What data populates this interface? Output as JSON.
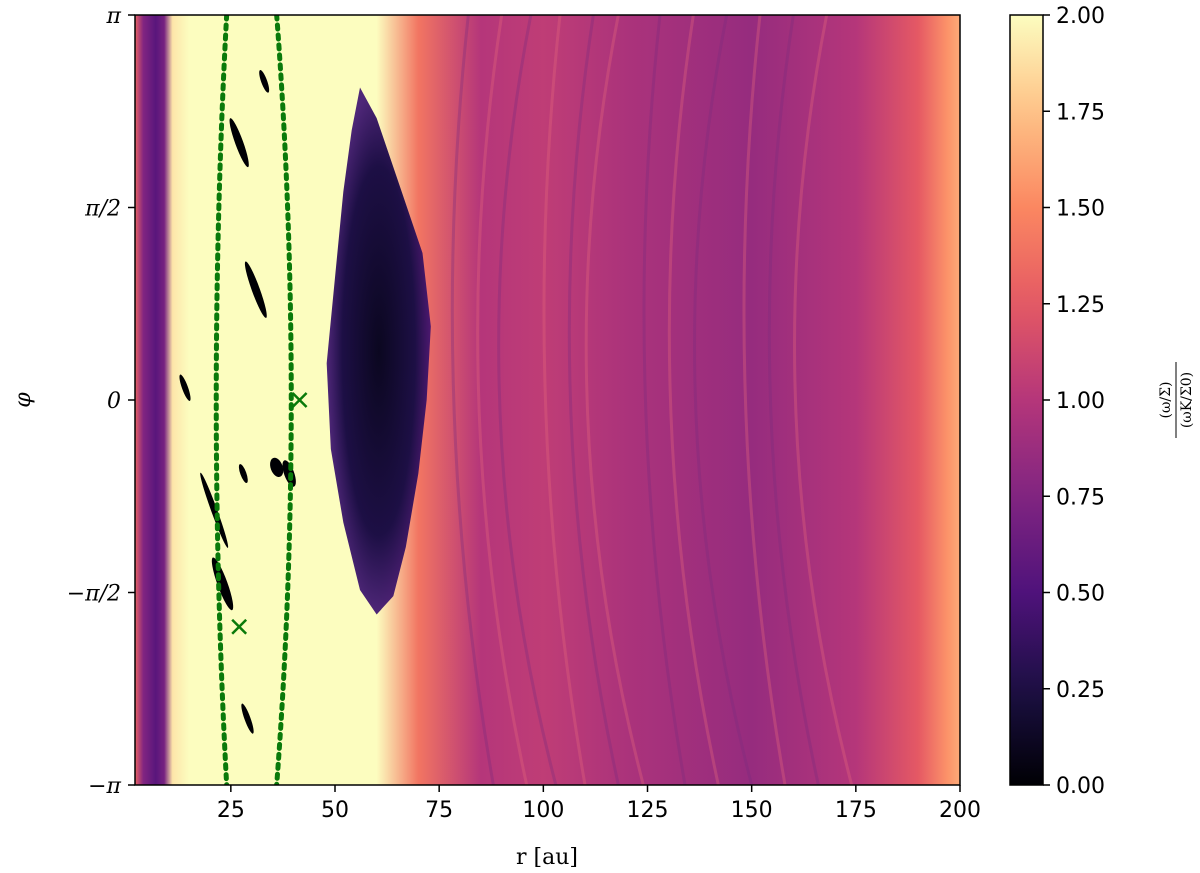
{
  "chart_data": {
    "type": "heatmap",
    "colormap": "magma",
    "xlabel": "r [au]",
    "ylabel": "φ",
    "xlim": [
      2,
      200
    ],
    "ylim": [
      -3.14159,
      3.14159
    ],
    "x_ticks": [
      {
        "value": 25,
        "label": "25"
      },
      {
        "value": 50,
        "label": "50"
      },
      {
        "value": 75,
        "label": "75"
      },
      {
        "value": 100,
        "label": "100"
      },
      {
        "value": 125,
        "label": "125"
      },
      {
        "value": 150,
        "label": "150"
      },
      {
        "value": 175,
        "label": "175"
      },
      {
        "value": 200,
        "label": "200"
      }
    ],
    "y_ticks": [
      {
        "value": -3.14159,
        "label": "−π"
      },
      {
        "value": -1.5708,
        "label": "−π/2"
      },
      {
        "value": 0,
        "label": "0"
      },
      {
        "value": 1.5708,
        "label": "π/2"
      },
      {
        "value": 3.14159,
        "label": "π"
      }
    ],
    "colorbar": {
      "vmin": 0.0,
      "vmax": 2.0,
      "ticks": [
        "0.00",
        "0.25",
        "0.50",
        "0.75",
        "1.00",
        "1.25",
        "1.50",
        "1.75",
        "2.00"
      ],
      "label_numerator": "(ω/Σ)",
      "label_denominator": "(ωK/Σ0)"
    },
    "radial_profile": [
      {
        "r": 2,
        "value": 1.3
      },
      {
        "r": 4,
        "value": 0.75
      },
      {
        "r": 7,
        "value": 0.55
      },
      {
        "r": 9,
        "value": 0.7
      },
      {
        "r": 11,
        "value": 1.9
      },
      {
        "r": 15,
        "value": 2.0
      },
      {
        "r": 60,
        "value": 2.0
      },
      {
        "r": 70,
        "value": 1.4
      },
      {
        "r": 85,
        "value": 1.0
      },
      {
        "r": 100,
        "value": 1.05
      },
      {
        "r": 120,
        "value": 0.95
      },
      {
        "r": 150,
        "value": 0.85
      },
      {
        "r": 175,
        "value": 1.0
      },
      {
        "r": 190,
        "value": 1.25
      },
      {
        "r": 197,
        "value": 1.55
      },
      {
        "r": 200,
        "value": 1.65
      }
    ],
    "vortex": {
      "r_center": 62,
      "phi_center": -0.2,
      "value": 0.1
    },
    "orbit_tracks": [
      {
        "r_top": 24,
        "r_bottom": 24,
        "r_mid": 19
      },
      {
        "r_top": 36,
        "r_bottom": 36,
        "r_mid": 43
      }
    ],
    "markers": [
      {
        "r": 41.5,
        "phi": 0.0,
        "symbol": "x"
      },
      {
        "r": 27,
        "phi": -1.85,
        "symbol": "x"
      }
    ],
    "colors": {
      "track": "#0a7a0a",
      "marker": "#0a7a0a"
    }
  }
}
